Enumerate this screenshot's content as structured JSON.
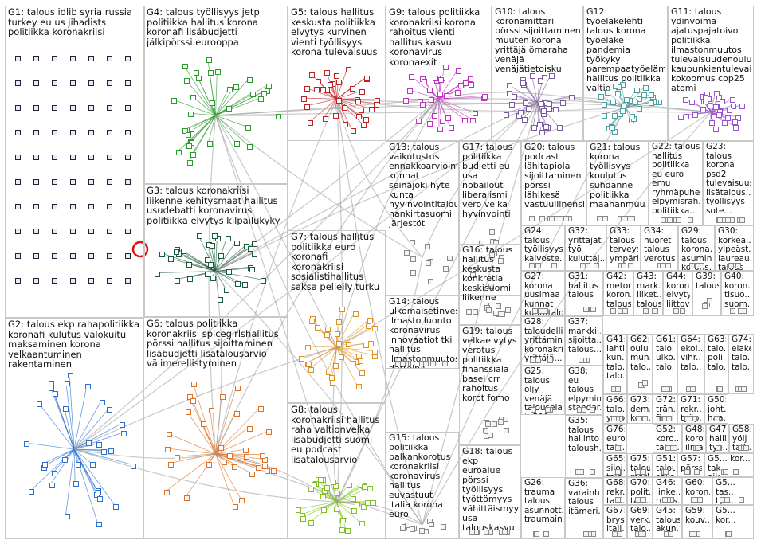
{
  "groups": [
    {
      "id": "G1",
      "label": "G1: talous idlib syria russia turkey eu us jihadists politiikka koronakriisi",
      "color": "#2a2a6a"
    },
    {
      "id": "G4",
      "label": "G4: talous työllisyys jetp politiikka hallitus korona koronafi lisäbudjetti jälkipörssi eurooppa",
      "color": "#2a9a2a"
    },
    {
      "id": "G5",
      "label": "G5: talous hallitus keskusta politiikka elvytys kurvinen vienti työllisyys korona tulevaisuus",
      "color": "#c02020"
    },
    {
      "id": "G9",
      "label": "G9: talous politiikka koronakriisi korona rahoitus vienti hallitus kasvu koronavirus koronaexit",
      "color": "#c030c0"
    },
    {
      "id": "G10",
      "label": "G10: talous koronamittari pörssi sijoittaminen muuten korona yrittäjä ömaraha venäjä venäjätietoisku",
      "color": "#7a5aa0"
    },
    {
      "id": "G12",
      "label": "G12: työeläkelehti talous korona työeläke pandemia työkyky parempaatyöeläm hallitus politiikka valtio",
      "color": "#4aa0a0"
    },
    {
      "id": "G11",
      "label": "G11: talous ydinvoima ajatuspajatoivo politiikka ilmastonmuutos tulevaisuudenoulu kaupunkientulevai kokoomus cop25 atomi",
      "color": "#9a50d0"
    },
    {
      "id": "G13",
      "label": "G13: talous vaikutustus ennakkoarviointi kunnat seinäjoki hyte kunta hyvinvointitalous hankirtasuomi järjestöt",
      "color": "#888888"
    },
    {
      "id": "G17",
      "label": "G17: talous politiikka budjetti eu usa nobailout liberalismi vero velka hyvinvointi",
      "color": "#888888"
    },
    {
      "id": "G20",
      "label": "G20: talous podcast lähitapiola sijoittaminen pörssi lähikesä vastuullinensij...",
      "color": "#888888"
    },
    {
      "id": "G21",
      "label": "G21: talous korona työllisyys koulutus suhdanne politiikka maahanmuu...",
      "color": "#888888"
    },
    {
      "id": "G22",
      "label": "G22: talous hallitus politiikka eu euro emu ryhmäpuhe elpymisrah... politiikka...",
      "color": "#888888"
    },
    {
      "id": "G23",
      "label": "G23: talous korona psd2 tulevaisuus lisätalous... työllisyys sote...",
      "color": "#888888"
    },
    {
      "id": "G3",
      "label": "G3: talous koronakriisi liikenne kehitysmaat hallitus usudebatti koronavirus politiikka elvytys kilpailukyky",
      "color": "#1a5a3a"
    },
    {
      "id": "G7",
      "label": "G7: talous hallitus politiikka euro koronafi koronakriisi sosialistihallitus saksa pelleily turku",
      "color": "#e09020"
    },
    {
      "id": "G16",
      "label": "G16: talous hallitus keskusta konkretia keskisuomi liikenne",
      "color": "#888888"
    },
    {
      "id": "G24",
      "label": "G24: talous työllisyys kaivoste...",
      "color": "#888888"
    },
    {
      "id": "G32",
      "label": "G32: yrittäjät työ kuluttaj...",
      "color": "#888888"
    },
    {
      "id": "G33",
      "label": "G33: talous terveys ympäri...",
      "color": "#888888"
    },
    {
      "id": "G34",
      "label": "G34: nuoret talous verotus",
      "color": "#888888"
    },
    {
      "id": "G29",
      "label": "G29: talous korona... asumin... korons...",
      "color": "#888888"
    },
    {
      "id": "G30",
      "label": "G30: korkea... ylpeäst... laureau... talous",
      "color": "#888888"
    },
    {
      "id": "G14",
      "label": "G14: talous ulkomaisetinves... ilmasto luonto koronavirus innovaatiot tki hallitus ilmastonmuutos datteln4",
      "color": "#888888"
    },
    {
      "id": "G27",
      "label": "G27: korona uusimaa kunnat kuntatalo...",
      "color": "#888888"
    },
    {
      "id": "G31",
      "label": "G31: hallitus talous",
      "color": "#888888"
    },
    {
      "id": "G42",
      "label": "G42: metoo koron... talous",
      "color": "#888888"
    },
    {
      "id": "G43",
      "label": "G43: mark... liiket... talous",
      "color": "#888888"
    },
    {
      "id": "G44",
      "label": "G44: koron... elvytys liittov...",
      "color": "#888888"
    },
    {
      "id": "G39",
      "label": "G39: talous",
      "color": "#888888"
    },
    {
      "id": "G40",
      "label": "G40: koron... tisuo... suom...",
      "color": "#888888"
    },
    {
      "id": "G2",
      "label": "G2: talous ekp rahapolitiikka koronafi kulutus valokuitu maksaminen korona velkaantuminen rakentaminen",
      "color": "#2a70d0"
    },
    {
      "id": "G6",
      "label": "G6: talous politiikka koronakriisi spicegirlshallitus pörssi hallitus sijoittaminen lisäbudjetti lisätalousarvio välimerellistyminen",
      "color": "#e07020"
    },
    {
      "id": "G19",
      "label": "G19: talous velkaelvytys verotus politiikka finanssiala basel crr rahoitus korot fomo",
      "color": "#888888"
    },
    {
      "id": "G28",
      "label": "G28: taloudelli... yrittämin... koronakri... yrittäjä...",
      "color": "#888888"
    },
    {
      "id": "G37",
      "label": "G37: markki... sijoitta... talous...",
      "color": "#888888"
    },
    {
      "id": "G41",
      "label": "G41: lahti kun... talo... talo...",
      "color": "#888888"
    },
    {
      "id": "G62",
      "label": "G62: oulu mun... talo...",
      "color": "#888888"
    },
    {
      "id": "G61",
      "label": "G61: talo... ulko... talo...",
      "color": "#888888"
    },
    {
      "id": "G64",
      "label": "G64: ekol... vihr... talo...",
      "color": "#888888"
    },
    {
      "id": "G63",
      "label": "G63: talo... poli... talo...",
      "color": "#888888"
    },
    {
      "id": "G74",
      "label": "G74: elake talo... talo...",
      "color": "#888888"
    },
    {
      "id": "G8",
      "label": "G8: talous koronakriisi hallitus raha valtionvelka lisäbudjetti suomi eu podcast lisätalousarvio",
      "color": "#80c020"
    },
    {
      "id": "G38",
      "label": "G38: eu talous elpymin... standar...",
      "color": "#888888"
    },
    {
      "id": "G66",
      "label": "G66: talo... ymp...",
      "color": "#888888"
    },
    {
      "id": "G73",
      "label": "G73: dem... koro...",
      "color": "#888888"
    },
    {
      "id": "G72",
      "label": "G72: trän... finni...",
      "color": "#888888"
    },
    {
      "id": "G71",
      "label": "G71: rekr... työp...",
      "color": "#888888"
    },
    {
      "id": "G50",
      "label": "G50: joht... haa...",
      "color": "#888888"
    },
    {
      "id": "G25",
      "label": "G25: talous öljy venäjä talousela... te500...",
      "color": "#888888"
    },
    {
      "id": "G76",
      "label": "G76: euro... talo...",
      "color": "#888888"
    },
    {
      "id": "G52",
      "label": "G52: koro... talo...",
      "color": "#888888"
    },
    {
      "id": "G48",
      "label": "G48: koro... ilma...",
      "color": "#888888"
    },
    {
      "id": "G47",
      "label": "G47: halli... työ...",
      "color": "#888888"
    },
    {
      "id": "G58",
      "label": "G58: yölj ta2...",
      "color": "#888888"
    },
    {
      "id": "G15",
      "label": "G15: talous politiikka palkankorotus koronakriisi koronavirus hallitus euvastuut italia korona euro",
      "color": "#888888"
    },
    {
      "id": "G18",
      "label": "G18: talous ekp euroalue pörssi työllisyys työttömyys vähittäismyy... usa talouskasvu...",
      "color": "#888888"
    },
    {
      "id": "G35",
      "label": "G35: talous hallinto taloush...",
      "color": "#888888"
    },
    {
      "id": "G65",
      "label": "G65: sijoi... talo...",
      "color": "#888888"
    },
    {
      "id": "G75",
      "label": "G75: talous mark...",
      "color": "#888888"
    },
    {
      "id": "G51",
      "label": "G51: talous saks...",
      "color": "#888888"
    },
    {
      "id": "G57",
      "label": "G57: pörss...",
      "color": "#888888"
    },
    {
      "id": "G5x",
      "label": "G5... kor... tak... oik...",
      "color": "#888888"
    },
    {
      "id": "G26",
      "label": "G26: trauma talous asunnott... traumain...",
      "color": "#888888"
    },
    {
      "id": "G36",
      "label": "G36: varainh... talous itämeri...",
      "color": "#888888"
    },
    {
      "id": "G68",
      "label": "G68: rekr... talo...",
      "color": "#888888"
    },
    {
      "id": "G70",
      "label": "G70: polit... talo...",
      "color": "#888888"
    },
    {
      "id": "G46",
      "label": "G46: linke... ruots...",
      "color": "#888888"
    },
    {
      "id": "G60",
      "label": "G60: koron...",
      "color": "#888888"
    },
    {
      "id": "G5y",
      "label": "G5... tas... työ... tal...",
      "color": "#888888"
    },
    {
      "id": "G67",
      "label": "G67: brys... itali...",
      "color": "#888888"
    },
    {
      "id": "G69",
      "label": "G69: verk... talo...",
      "color": "#888888"
    },
    {
      "id": "G45",
      "label": "G45: talous akun...",
      "color": "#888888"
    },
    {
      "id": "G59",
      "label": "G59: kouv...",
      "color": "#888888"
    },
    {
      "id": "G5z",
      "label": "G5... kor...",
      "color": "#888888"
    }
  ]
}
